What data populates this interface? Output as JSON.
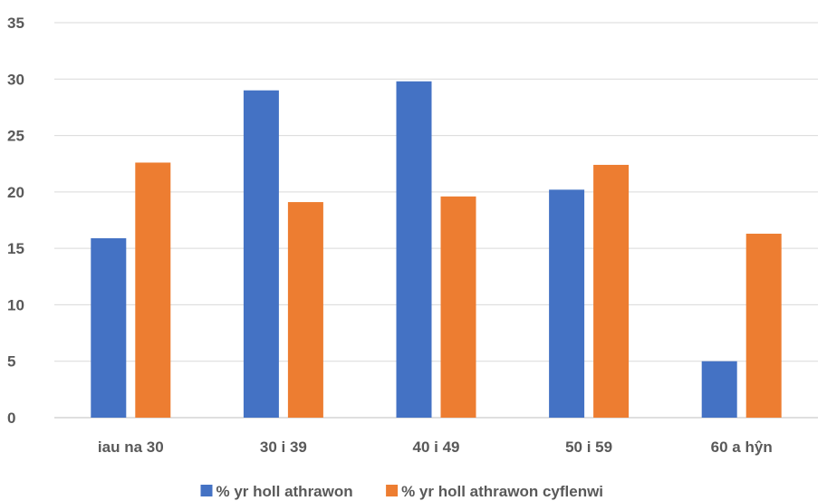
{
  "chart_data": {
    "type": "bar",
    "categories": [
      "iau na 30",
      "30 i 39",
      "40 i 49",
      "50 i 59",
      "60 a hŷn"
    ],
    "series": [
      {
        "name": "% yr holl athrawon",
        "values": [
          15.9,
          29.0,
          29.8,
          20.2,
          5.0
        ],
        "color": "#4472C4"
      },
      {
        "name": "% yr holl athrawon cyflenwi",
        "values": [
          22.6,
          19.1,
          19.6,
          22.4,
          16.3
        ],
        "color": "#ED7D31"
      }
    ],
    "yticks": [
      "0",
      "5",
      "10",
      "15",
      "20",
      "25",
      "30",
      "35"
    ],
    "ylim": [
      0,
      35
    ],
    "grid": true,
    "legend_position": "bottom"
  }
}
